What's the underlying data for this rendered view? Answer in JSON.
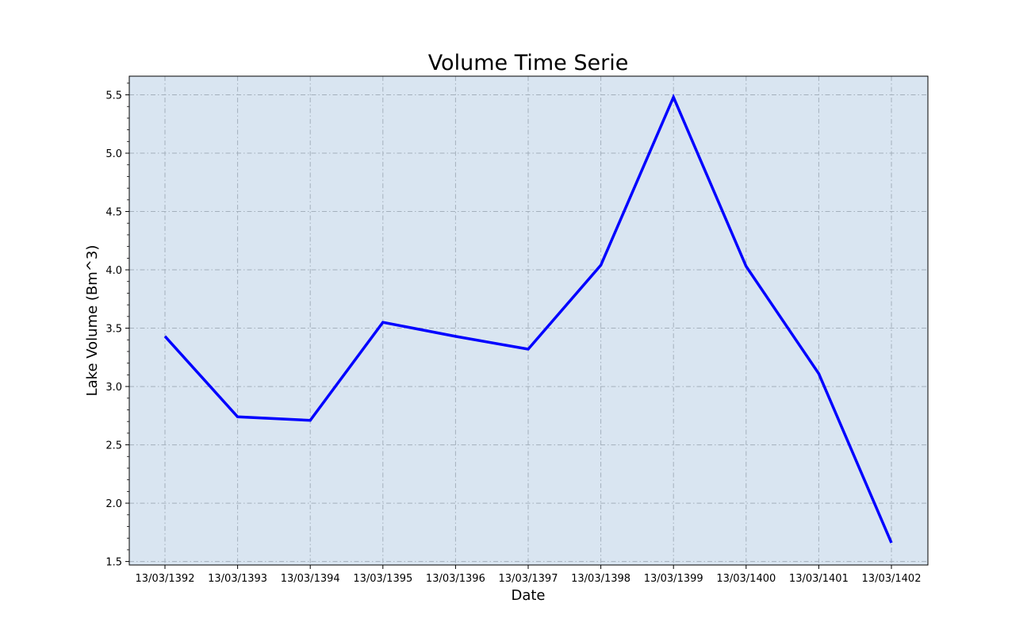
{
  "chart_data": {
    "type": "line",
    "title": "Volume Time Serie",
    "xlabel": "Date",
    "ylabel": "Lake Volume (Bm^3)",
    "x": [
      "13/03/1392",
      "13/03/1393",
      "13/03/1394",
      "13/03/1395",
      "13/03/1396",
      "13/03/1397",
      "13/03/1398",
      "13/03/1399",
      "13/03/1400",
      "13/03/1401",
      "13/03/1402"
    ],
    "series": [
      {
        "values": [
          3.43,
          2.74,
          2.71,
          3.55,
          3.43,
          3.32,
          4.04,
          5.48,
          4.03,
          3.11,
          1.66
        ],
        "color": "#0000ff"
      }
    ],
    "ylim": [
      1.47,
      5.66
    ],
    "yticks": [
      1.5,
      2.0,
      2.5,
      3.0,
      3.5,
      4.0,
      4.5,
      5.0,
      5.5
    ],
    "ytick_labels": [
      "1.5",
      "2.0",
      "2.5",
      "3.0",
      "3.5",
      "4.0",
      "4.5",
      "5.0",
      "5.5"
    ],
    "grid": true,
    "grid_style": "dashdot",
    "plot_background": "#d9e5f1",
    "grid_color": "#a4b0bc"
  }
}
